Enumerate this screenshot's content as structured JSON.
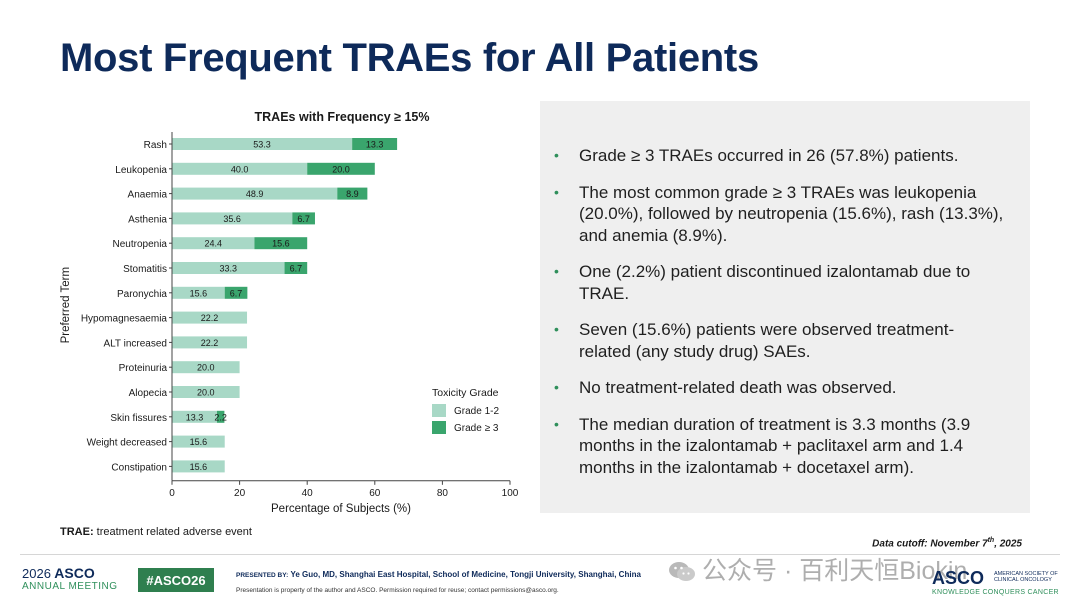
{
  "slide": {
    "title": "Most Frequent TRAEs for All Patients",
    "footnote_bold": "TRAE:",
    "footnote_text": " treatment related adverse event",
    "cutoff_pre": "Data cutoff: November 7",
    "cutoff_sup": "th",
    "cutoff_post": ", 2025"
  },
  "bullets": [
    "Grade ≥ 3 TRAEs occurred in 26 (57.8%) patients.",
    "The most common grade ≥ 3 TRAEs was leukopenia (20.0%), followed by neutropenia (15.6%), rash (13.3%), and anemia (8.9%).",
    "One (2.2%) patient discontinued izalontamab due to TRAE.",
    "Seven (15.6%) patients were observed treatment-related (any study drug) SAEs.",
    "No treatment-related death was observed.",
    "The median duration of treatment is 3.3 months (3.9 months in the izalontamab + paclitaxel arm and 1.4 months in the izalontamab + docetaxel arm)."
  ],
  "bullet_symbol": "•",
  "footer": {
    "asco_year": "2026",
    "asco_name": "ASCO",
    "asco_meeting": "ANNUAL MEETING",
    "hashtag": "#ASCO26",
    "presented_label": "PRESENTED BY:",
    "presenter": "Ye Guo, MD, Shanghai East Hospital, School of Medicine, Tongji University, Shanghai, China",
    "property_note": "Presentation is property of the author and ASCO. Permission required for reuse; contact permissions@asco.org.",
    "watermark": "公众号 · 百利天恒Biokin",
    "asco_right_logo": "ASCO",
    "asco_right_small": "AMERICAN SOCIETY OF CLINICAL ONCOLOGY",
    "asco_right_tagline": "KNOWLEDGE CONQUERS CANCER"
  },
  "colors": {
    "grade12": "#a8d8c6",
    "grade3": "#3aa56d",
    "title": "#0e2a5a",
    "bullet": "#2f8f5b"
  },
  "chart_data": {
    "type": "bar",
    "orientation": "horizontal",
    "stacked": true,
    "title": "TRAEs with Frequency ≥ 15%",
    "xlabel": "Percentage of Subjects (%)",
    "ylabel": "Preferred Term",
    "xlim": [
      0,
      100
    ],
    "xticks": [
      0,
      20,
      40,
      60,
      80,
      100
    ],
    "grid": false,
    "legend_title": "Toxicity Grade",
    "legend_position": "bottom-right",
    "categories": [
      "Rash",
      "Leukopenia",
      "Anaemia",
      "Asthenia",
      "Neutropenia",
      "Stomatitis",
      "Paronychia",
      "Hypomagnesaemia",
      "ALT increased",
      "Proteinuria",
      "Alopecia",
      "Skin fissures",
      "Weight decreased",
      "Constipation"
    ],
    "series": [
      {
        "name": "Grade 1-2",
        "values": [
          53.3,
          40.0,
          48.9,
          35.6,
          24.4,
          33.3,
          15.6,
          22.2,
          22.2,
          20.0,
          20.0,
          13.3,
          15.6,
          15.6
        ]
      },
      {
        "name": "Grade ≥ 3",
        "values": [
          13.3,
          20.0,
          8.9,
          6.7,
          15.6,
          6.7,
          6.7,
          0,
          0,
          0,
          0,
          2.2,
          0,
          0
        ]
      }
    ]
  }
}
